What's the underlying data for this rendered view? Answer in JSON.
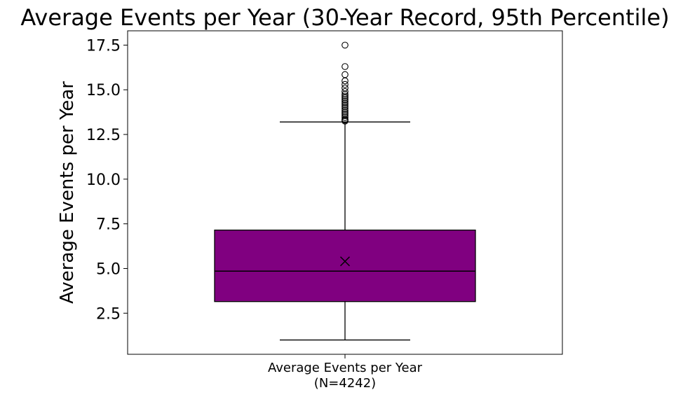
{
  "chart_data": {
    "type": "box",
    "title": "Average Events per Year (30-Year Record, 95th Percentile)",
    "ylabel": "Average Events per Year",
    "xlabel": "",
    "categories": [
      "Average Events per Year\n(N=4242)"
    ],
    "category_lines": [
      "Average Events per Year",
      "(N=4242)"
    ],
    "ylim": [
      0.2,
      18.3
    ],
    "yticks": [
      2.5,
      5.0,
      7.5,
      10.0,
      12.5,
      15.0,
      17.5
    ],
    "ytick_labels": [
      "2.5",
      "5.0",
      "7.5",
      "10.0",
      "12.5",
      "15.0",
      "17.5"
    ],
    "grid": false,
    "box_color": "#800080",
    "series": [
      {
        "whisker_low": 1.0,
        "q1": 3.15,
        "median": 4.85,
        "q3": 7.15,
        "whisker_high": 13.2,
        "mean": 5.4,
        "outliers": [
          13.25,
          13.3,
          13.35,
          13.45,
          13.55,
          13.65,
          13.75,
          13.85,
          13.95,
          14.05,
          14.15,
          14.25,
          14.35,
          14.45,
          14.55,
          14.65,
          14.75,
          14.9,
          15.1,
          15.3,
          15.5,
          15.85,
          16.3,
          17.5
        ]
      }
    ]
  }
}
